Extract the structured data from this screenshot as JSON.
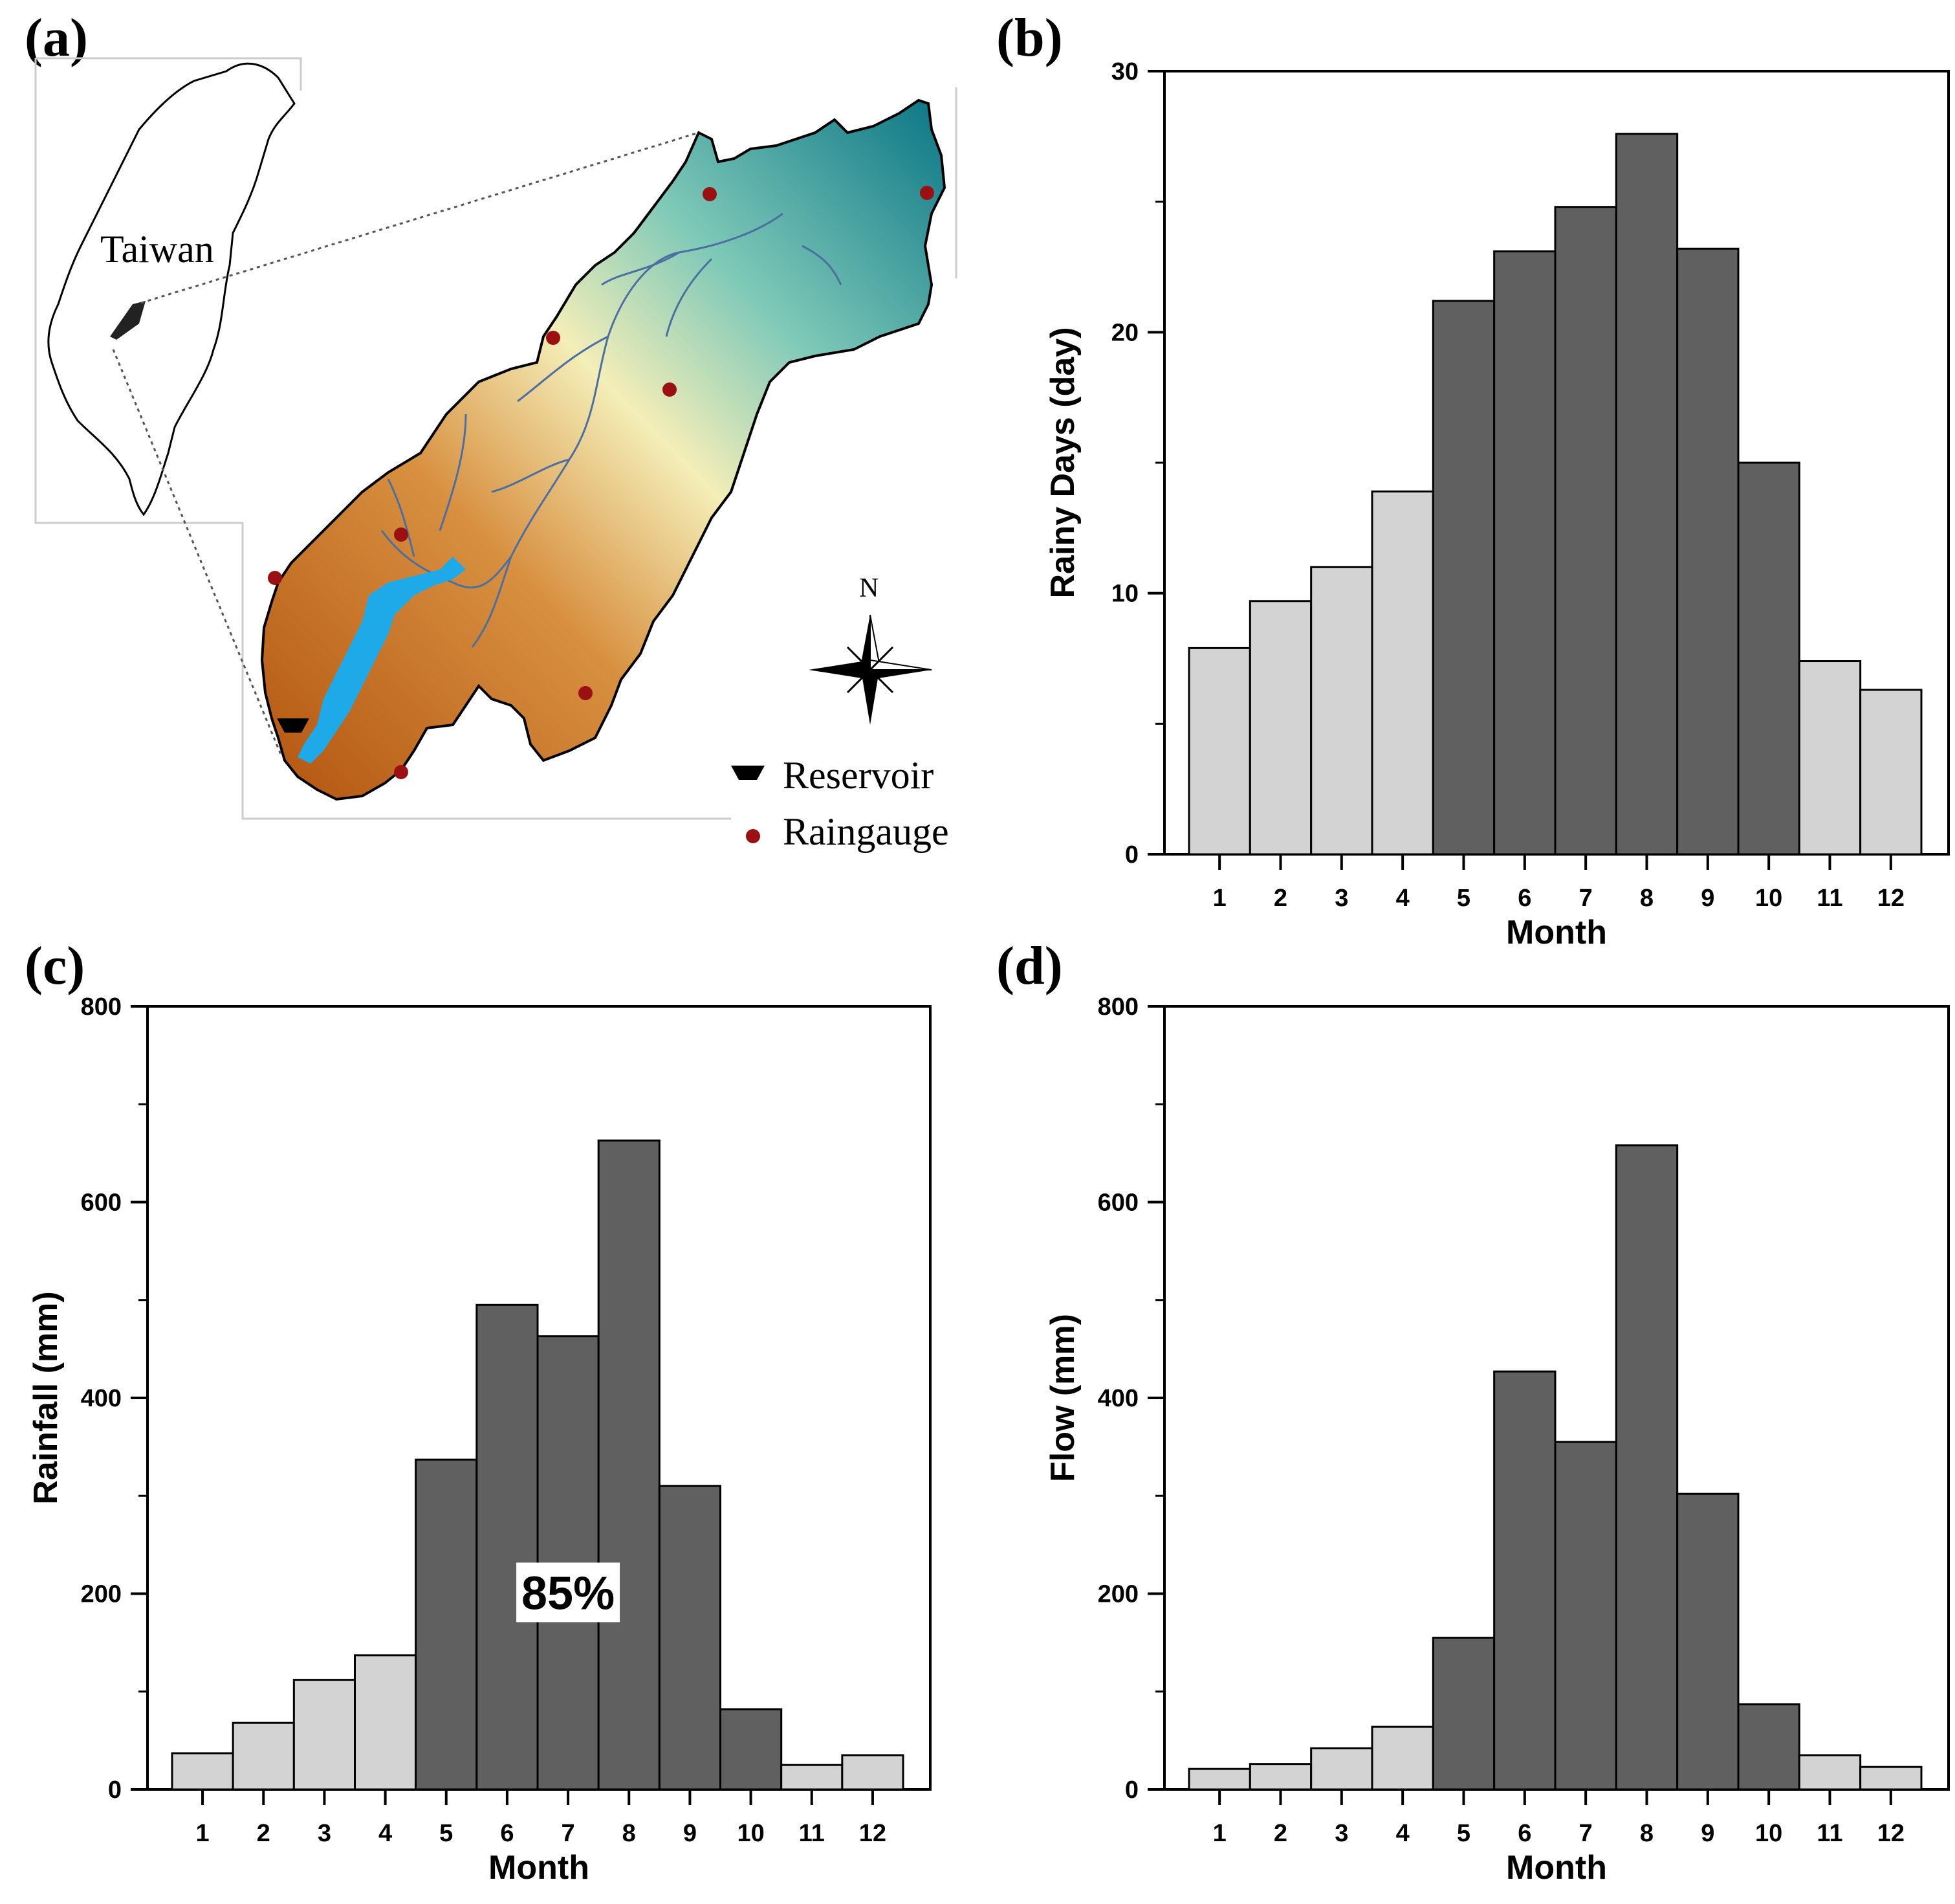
{
  "panels": {
    "a": {
      "label": "(a)",
      "island_label": "Taiwan",
      "north_label": "N",
      "legend": {
        "reservoir": "Reservoir",
        "raingauge": "Raingauge"
      }
    },
    "b": {
      "label": "(b)"
    },
    "c": {
      "label": "(c)"
    },
    "d": {
      "label": "(d)"
    }
  },
  "colors": {
    "wet_bar": "#606060",
    "dry_bar": "#d3d3d3",
    "reservoir_water": "#1eaae8",
    "raingauge": "#9b1010",
    "elevation_low": "#b85a10",
    "elevation_mid": "#f6f3c0",
    "elevation_high": "#0a7a8a"
  },
  "chart_data": [
    {
      "id": "b",
      "type": "bar",
      "categories": [
        "1",
        "2",
        "3",
        "4",
        "5",
        "6",
        "7",
        "8",
        "9",
        "10",
        "11",
        "12"
      ],
      "values": [
        7.9,
        9.7,
        11.0,
        13.9,
        21.2,
        23.1,
        24.8,
        27.6,
        23.2,
        15.0,
        7.4,
        6.3
      ],
      "wet_season": [
        false,
        false,
        false,
        false,
        true,
        true,
        true,
        true,
        true,
        true,
        false,
        false
      ],
      "xlabel": "Month",
      "ylabel": "Rainy Days (day)",
      "ylim": [
        0,
        30
      ],
      "yticks": [
        0,
        10,
        20,
        30
      ]
    },
    {
      "id": "c",
      "type": "bar",
      "categories": [
        "1",
        "2",
        "3",
        "4",
        "5",
        "6",
        "7",
        "8",
        "9",
        "10",
        "11",
        "12"
      ],
      "values": [
        37,
        68,
        112,
        137,
        337,
        495,
        463,
        663,
        310,
        82,
        25,
        35
      ],
      "wet_season": [
        false,
        false,
        false,
        false,
        true,
        true,
        true,
        true,
        true,
        true,
        false,
        false
      ],
      "xlabel": "Month",
      "ylabel": "Rainfall (mm)",
      "ylim": [
        0,
        800
      ],
      "yticks": [
        0,
        200,
        400,
        600,
        800
      ],
      "annotation": {
        "text": "85%",
        "x": 7,
        "y": 200
      }
    },
    {
      "id": "d",
      "type": "bar",
      "categories": [
        "1",
        "2",
        "3",
        "4",
        "5",
        "6",
        "7",
        "8",
        "9",
        "10",
        "11",
        "12"
      ],
      "values": [
        21,
        26,
        42,
        64,
        155,
        427,
        355,
        658,
        302,
        87,
        35,
        23
      ],
      "wet_season": [
        false,
        false,
        false,
        false,
        true,
        true,
        true,
        true,
        true,
        true,
        false,
        false
      ],
      "xlabel": "Month",
      "ylabel": "Flow (mm)",
      "ylim": [
        0,
        800
      ],
      "yticks": [
        0,
        200,
        400,
        600,
        800
      ]
    }
  ]
}
